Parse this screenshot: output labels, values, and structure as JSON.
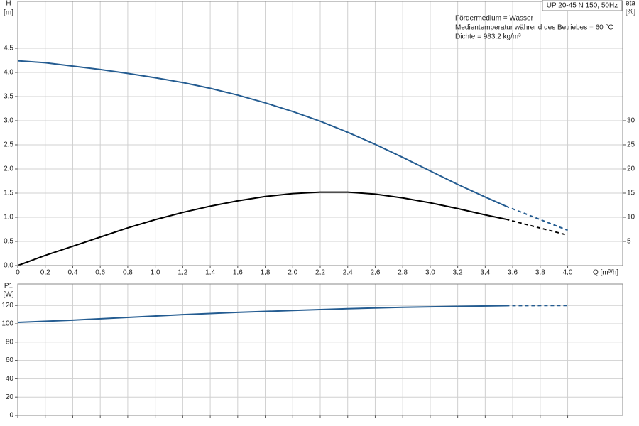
{
  "chart_data": [
    {
      "type": "line",
      "title": "UP 20-45 N 150, 50Hz",
      "annotations": [
        "Fördermedium = Wasser",
        "Medientemperatur während des Betriebes = 60 °C",
        "Dichte = 983.2 kg/m³"
      ],
      "x_label": "Q [m³/h]",
      "y_label": "H",
      "y_unit": "[m]",
      "y2_label": "eta",
      "y2_unit": "[%]",
      "grid": true,
      "xlim": [
        0,
        4.4
      ],
      "xticks": [
        0,
        {
          "value": 0.2,
          "label": "0,2"
        },
        {
          "value": 0.4,
          "label": "0,4"
        },
        {
          "value": 0.6,
          "label": "0,6"
        },
        {
          "value": 0.8,
          "label": "0,8"
        },
        {
          "value": 1,
          "label": "1,0"
        },
        {
          "value": 1.2,
          "label": "1,2"
        },
        {
          "value": 1.4,
          "label": "1,4"
        },
        {
          "value": 1.6,
          "label": "1,6"
        },
        {
          "value": 1.8,
          "label": "1,8"
        },
        {
          "value": 2,
          "label": "2,0"
        },
        {
          "value": 2.2,
          "label": "2,2"
        },
        {
          "value": 2.4,
          "label": "2,4"
        },
        {
          "value": 2.6,
          "label": "2,6"
        },
        {
          "value": 2.8,
          "label": "2,8"
        },
        {
          "value": 3,
          "label": "3,0"
        },
        {
          "value": 3.2,
          "label": "3,2"
        },
        {
          "value": 3.4,
          "label": "3,4"
        },
        {
          "value": 3.6,
          "label": "3,6"
        },
        {
          "value": 3.8,
          "label": "3,8"
        },
        {
          "value": 4,
          "label": "4,0"
        }
      ],
      "ylim": [
        0,
        5.47
      ],
      "yticks": [
        {
          "value": 0,
          "label": "0.0"
        },
        0.5,
        {
          "value": 1,
          "label": "1.0"
        },
        1.5,
        {
          "value": 2,
          "label": "2.0"
        },
        2.5,
        {
          "value": 3,
          "label": "3.0"
        },
        3.5,
        {
          "value": 4,
          "label": "4.0"
        },
        4.5
      ],
      "y2lim": [
        0,
        54.7
      ],
      "y2ticks": [
        5,
        10,
        15,
        20,
        25,
        30
      ],
      "series": [
        {
          "color": "#245c91",
          "dashed": false,
          "x": [
            0,
            0.2,
            0.4,
            0.6,
            0.8,
            1.0,
            1.2,
            1.4,
            1.6,
            1.8,
            2.0,
            2.2,
            2.4,
            2.6,
            2.8,
            3.0,
            3.2,
            3.4,
            3.55
          ],
          "values": [
            4.24,
            4.2,
            4.13,
            4.06,
            3.98,
            3.89,
            3.79,
            3.67,
            3.53,
            3.37,
            3.19,
            2.99,
            2.76,
            2.51,
            2.24,
            1.96,
            1.68,
            1.42,
            1.23
          ]
        },
        {
          "color": "#245c91",
          "dashed": true,
          "x": [
            3.55,
            4.0
          ],
          "values": [
            1.23,
            0.73
          ]
        },
        {
          "color": "#000000",
          "dashed": false,
          "axis": "y2",
          "x": [
            0,
            0.2,
            0.4,
            0.6,
            0.8,
            1.0,
            1.2,
            1.4,
            1.6,
            1.8,
            2.0,
            2.2,
            2.4,
            2.6,
            2.8,
            3.0,
            3.2,
            3.4,
            3.55
          ],
          "values": [
            0,
            2.1,
            4.0,
            5.9,
            7.8,
            9.5,
            11.0,
            12.3,
            13.4,
            14.3,
            14.9,
            15.2,
            15.2,
            14.8,
            14.0,
            13.0,
            11.8,
            10.5,
            9.6
          ]
        },
        {
          "color": "#000000",
          "dashed": true,
          "axis": "y2",
          "x": [
            3.55,
            4.0
          ],
          "values": [
            9.6,
            6.3
          ]
        }
      ]
    },
    {
      "type": "line",
      "y_label": "P1",
      "y_unit": "[W]",
      "grid": true,
      "xlim": [
        0,
        4.4
      ],
      "ylim": [
        0,
        143.4
      ],
      "yticks": [
        0,
        20,
        40,
        60,
        80,
        100,
        120
      ],
      "series": [
        {
          "color": "#245c91",
          "dashed": false,
          "x": [
            0,
            0.4,
            0.8,
            1.2,
            1.6,
            2.0,
            2.4,
            2.8,
            3.2,
            3.55
          ],
          "values": [
            101.5,
            104,
            107,
            110,
            112.5,
            114.5,
            116.5,
            118,
            119,
            119.8
          ]
        },
        {
          "color": "#245c91",
          "dashed": true,
          "x": [
            3.55,
            4.0
          ],
          "values": [
            119.8,
            120
          ]
        }
      ]
    }
  ]
}
